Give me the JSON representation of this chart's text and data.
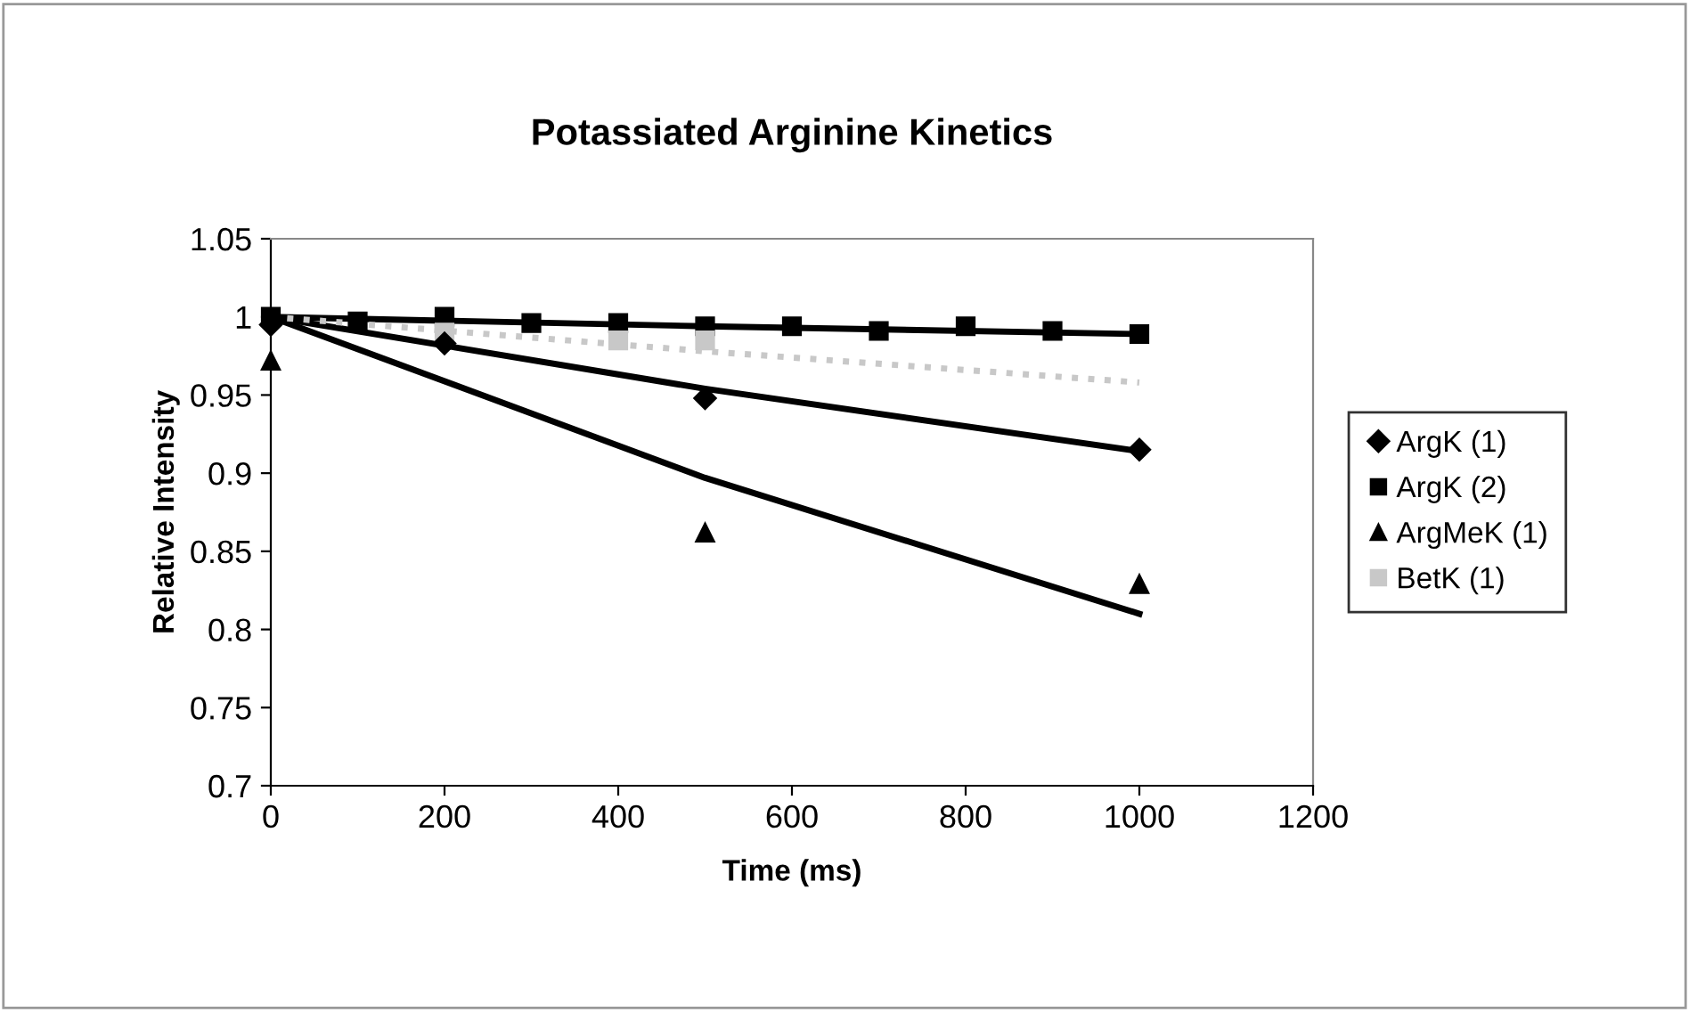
{
  "chart_data": {
    "type": "scatter",
    "title": "Potassiated Arginine Kinetics",
    "xlabel": "Time (ms)",
    "ylabel": "Relative Intensity",
    "xlim": [
      0,
      1200
    ],
    "xticks": [
      0,
      200,
      400,
      600,
      800,
      1000,
      1200
    ],
    "ylim": [
      0.7,
      1.05
    ],
    "yticks": [
      0.7,
      0.75,
      0.8,
      0.85,
      0.9,
      0.95,
      1,
      1.05
    ],
    "grid": false,
    "legend": "right",
    "series": [
      {
        "name": "ArgK (1)",
        "color": "#000000",
        "marker": "diamond",
        "x": [
          0,
          200,
          500,
          1000
        ],
        "values": [
          0.995,
          0.983,
          0.948,
          0.915
        ]
      },
      {
        "name": "ArgK (2)",
        "color": "#000000",
        "marker": "square",
        "x": [
          0,
          100,
          200,
          300,
          400,
          500,
          600,
          700,
          800,
          900,
          1000
        ],
        "values": [
          1.0,
          0.997,
          1.0,
          0.996,
          0.996,
          0.994,
          0.994,
          0.991,
          0.994,
          0.991,
          0.989
        ]
      },
      {
        "name": "ArgMeK (1)",
        "color": "#000000",
        "marker": "triangle",
        "x": [
          0,
          500,
          1000
        ],
        "values": [
          0.972,
          0.862,
          0.829
        ]
      },
      {
        "name": "BetK (1)",
        "color": "#c8c8c8",
        "marker": "square",
        "x": [
          200,
          400,
          500
        ],
        "values": [
          0.99,
          0.985,
          0.985
        ]
      },
      {
        "type": "line",
        "color": "#000000",
        "line_style": "solid",
        "x": [
          0,
          500,
          1000
        ],
        "values": [
          1.0,
          0.954,
          0.914
        ]
      },
      {
        "type": "line",
        "color": "#000000",
        "line_style": "solid",
        "x": [
          0,
          500,
          1000
        ],
        "values": [
          1.0,
          0.994,
          0.989
        ]
      },
      {
        "type": "line",
        "color": "#000000",
        "line_style": "solid",
        "x": [
          0,
          500,
          1000
        ],
        "values": [
          1.0,
          0.897,
          0.81
        ]
      },
      {
        "type": "line",
        "color": "#c8c8c8",
        "line_style": "dotted",
        "x": [
          0,
          500,
          1000
        ],
        "values": [
          1.0,
          0.978,
          0.958
        ]
      }
    ]
  }
}
